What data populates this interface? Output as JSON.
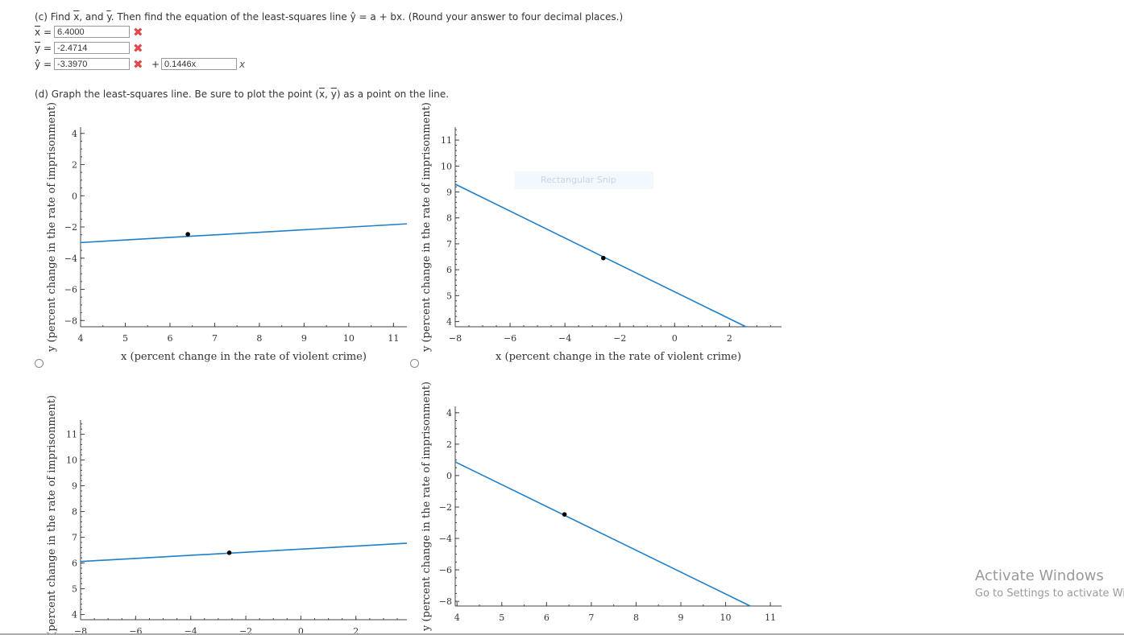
{
  "part_c": {
    "question_prefix": "(c) Find ",
    "question_mid": ", and ",
    "question_suffix": ". Then find the equation of the least-squares line ŷ = a + bx. (Round your answer to four decimal places.)",
    "xbar_symbol": "x",
    "ybar_symbol": "y",
    "xbar_label": "x",
    "ybar_label": "y",
    "yhat_label": "ŷ",
    "equals": "=",
    "xbar_value": "6.4000",
    "ybar_value": "-2.4714",
    "a_value": "-3.3970",
    "plus": "+",
    "b_value": "0.1446x",
    "x_suffix": "x",
    "incorrect_icon": "x-mark-icon",
    "incorrect_color": "#e04a4a"
  },
  "part_d": {
    "question": "(d) Graph the least-squares line. Be sure to plot the point (x, y) as a point on the line.",
    "q_prefix": "(d) Graph the least-squares line. Be sure to plot the point (",
    "q_x": "x",
    "q_comma": ", ",
    "q_y": "y",
    "q_suffix": ") as a point on the line."
  },
  "chart_data": [
    {
      "type": "line",
      "xlabel": "x (percent change in the rate of violent crime)",
      "ylabel": "y (percent change in the rate of imprisonment)",
      "xlim": [
        4,
        11.3
      ],
      "ylim": [
        -8.4,
        4.4
      ],
      "xticks": [
        4,
        5,
        6,
        7,
        8,
        9,
        10,
        11
      ],
      "yticks": [
        -8,
        -6,
        -4,
        -2,
        0,
        2,
        4
      ],
      "line": [
        [
          4,
          -3.0
        ],
        [
          11.3,
          -1.8
        ]
      ],
      "point": [
        6.4,
        -2.47
      ],
      "line_color": "#1f7fc8"
    },
    {
      "type": "line",
      "xlabel": "x (percent change in the rate of violent crime)",
      "ylabel": "y (percent change in the rate of imprisonment)",
      "xlim": [
        -8,
        3.9
      ],
      "ylim": [
        3.8,
        11.5
      ],
      "xticks": [
        -8,
        -6,
        -4,
        -2,
        0,
        2
      ],
      "yticks": [
        4,
        5,
        6,
        7,
        8,
        9,
        10,
        11
      ],
      "line": [
        [
          -8,
          9.3
        ],
        [
          2.6,
          3.8
        ]
      ],
      "point": [
        -2.6,
        6.45
      ],
      "line_color": "#1f7fc8"
    },
    {
      "type": "line",
      "xlabel": "",
      "ylabel": "y (percent change in the rate of imprisonment)",
      "xlim": [
        -8,
        3.85
      ],
      "ylim": [
        3.8,
        11.55
      ],
      "xticks": [
        -8,
        -6,
        -4,
        -2,
        0,
        2
      ],
      "yticks": [
        4,
        5,
        6,
        7,
        8,
        9,
        10,
        11
      ],
      "line": [
        [
          -8,
          6.06
        ],
        [
          3.85,
          6.77
        ]
      ],
      "point": [
        -2.6,
        6.4
      ],
      "line_color": "#1f7fc8"
    },
    {
      "type": "line",
      "xlabel": "",
      "ylabel": "y (percent change in the rate of imprisonment)",
      "xlim": [
        3.96,
        11.25
      ],
      "ylim": [
        -8.3,
        4.4
      ],
      "xticks": [
        4,
        5,
        6,
        7,
        8,
        9,
        10,
        11
      ],
      "yticks": [
        -8,
        -6,
        -4,
        -2,
        0,
        2,
        4
      ],
      "line": [
        [
          3.96,
          0.87
        ],
        [
          10.55,
          -8.3
        ]
      ],
      "point": [
        6.4,
        -2.47
      ],
      "line_color": "#1f7fc8"
    }
  ],
  "overlay": {
    "snip_label": "Rectangular Snip"
  },
  "watermark": {
    "title": "Activate Windows",
    "subtitle": "Go to Settings to activate Windows."
  }
}
